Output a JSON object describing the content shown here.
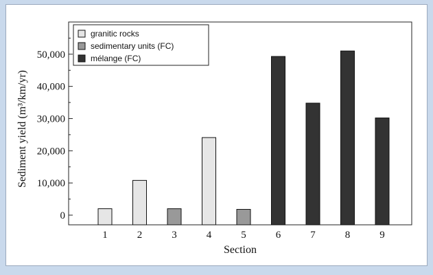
{
  "chart_data": {
    "type": "bar",
    "categories": [
      "1",
      "2",
      "3",
      "4",
      "5",
      "6",
      "7",
      "8",
      "9"
    ],
    "values": [
      2000,
      10800,
      2000,
      24100,
      1800,
      49300,
      34800,
      51000,
      30200
    ],
    "groups": [
      "granitic rocks",
      "granitic rocks",
      "sedimentary units (FC)",
      "granitic rocks",
      "sedimentary units (FC)",
      "mélange (FC)",
      "mélange (FC)",
      "mélange (FC)",
      "mélange (FC)"
    ],
    "legend": [
      {
        "name": "granitic rocks",
        "color": "#e6e6e6"
      },
      {
        "name": "sedimentary units (FC)",
        "color": "#999999"
      },
      {
        "name": "mélange (FC)",
        "color": "#333333"
      }
    ],
    "xlabel": "Section",
    "ylabel": "Sediment yield (m³/km/yr)",
    "ylim": [
      -3000,
      60000
    ],
    "yticks": [
      0,
      10000,
      20000,
      30000,
      40000,
      50000
    ],
    "ytick_labels": [
      "0",
      "10,000",
      "20,000",
      "30,000",
      "40,000",
      "50,000"
    ],
    "legend_position": "top-left",
    "grid": false
  }
}
